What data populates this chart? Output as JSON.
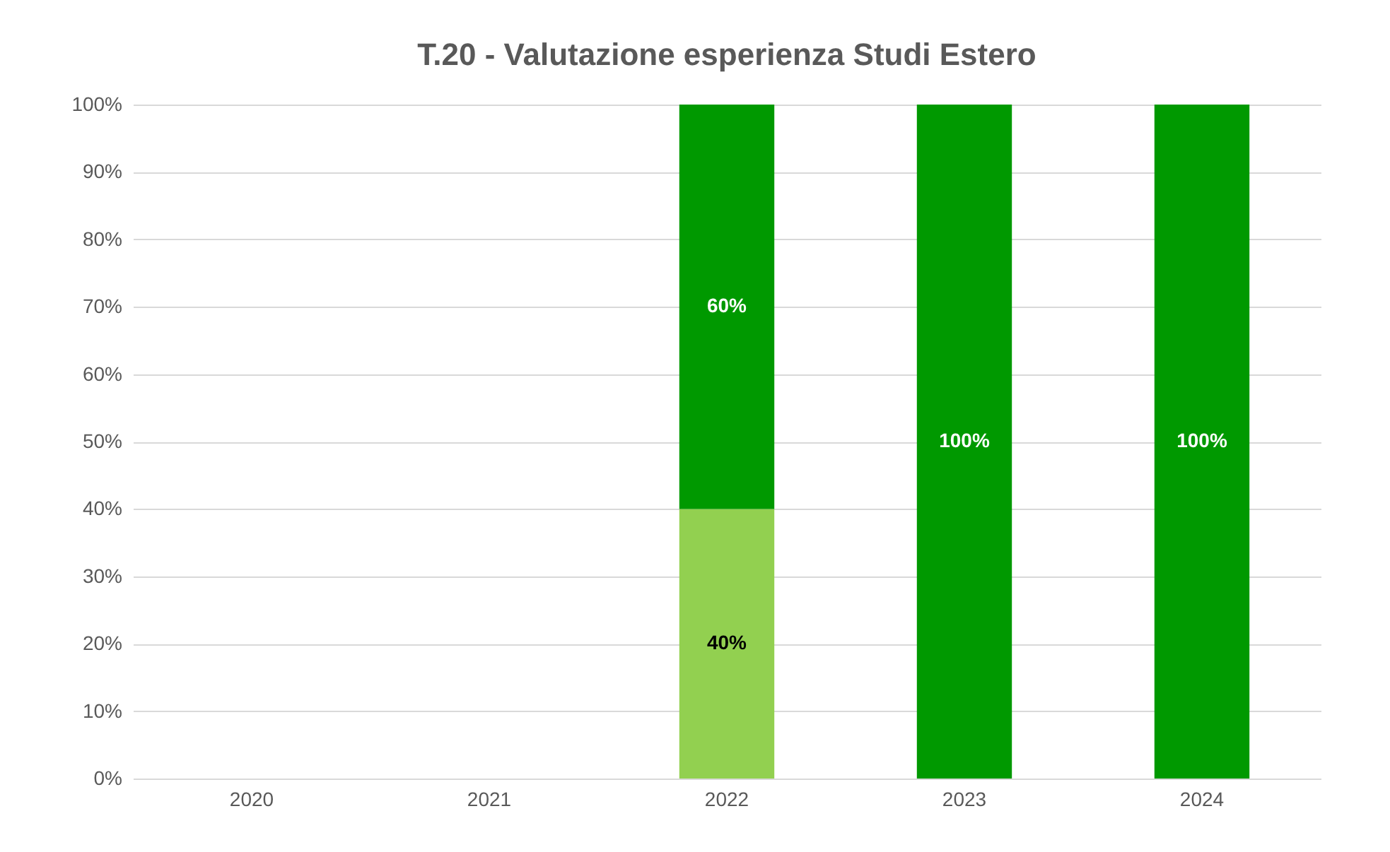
{
  "chart_data": {
    "type": "bar",
    "title": "T.20 - Valutazione esperienza Studi Estero",
    "categories": [
      "2020",
      "2021",
      "2022",
      "2023",
      "2024"
    ],
    "stacked": true,
    "ylim": [
      0,
      100
    ],
    "yticks": [
      {
        "value": 0,
        "label": "0%"
      },
      {
        "value": 10,
        "label": "10%"
      },
      {
        "value": 20,
        "label": "20%"
      },
      {
        "value": 30,
        "label": "30%"
      },
      {
        "value": 40,
        "label": "40%"
      },
      {
        "value": 50,
        "label": "50%"
      },
      {
        "value": 60,
        "label": "60%"
      },
      {
        "value": 70,
        "label": "70%"
      },
      {
        "value": 80,
        "label": "80%"
      },
      {
        "value": 90,
        "label": "90%"
      },
      {
        "value": 100,
        "label": "100%"
      }
    ],
    "grid": "y",
    "legend": false,
    "series": [
      {
        "color": "#92d050",
        "values": [
          null,
          null,
          40,
          null,
          null
        ],
        "value_labels": [
          null,
          null,
          "40%",
          null,
          null
        ]
      },
      {
        "color": "#009900",
        "values": [
          null,
          null,
          60,
          100,
          100
        ],
        "value_labels": [
          null,
          null,
          "60%",
          "100%",
          "100%"
        ]
      }
    ]
  }
}
